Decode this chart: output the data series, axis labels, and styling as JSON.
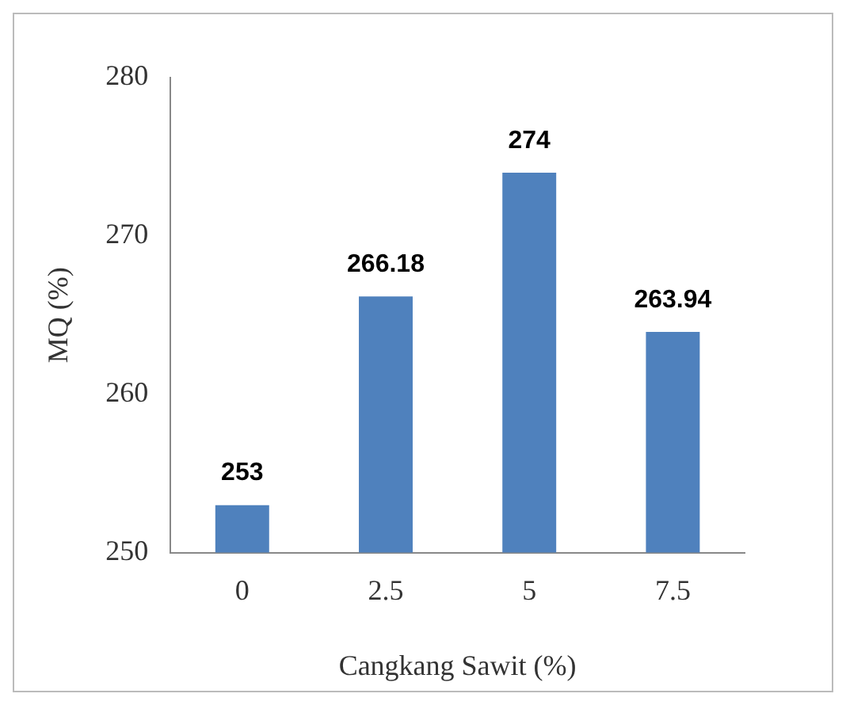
{
  "chart_data": {
    "type": "bar",
    "xlabel": "Cangkang Sawit (%)",
    "ylabel": "MQ (%)",
    "categories": [
      "0",
      "2.5",
      "5",
      "7.5"
    ],
    "values": [
      253,
      266.18,
      274,
      263.94
    ],
    "color": "#4f81bd",
    "ylim": [
      250,
      280
    ],
    "yticks": [
      250,
      260,
      270,
      280
    ],
    "grid": false,
    "legend": false,
    "data_labels": true
  }
}
